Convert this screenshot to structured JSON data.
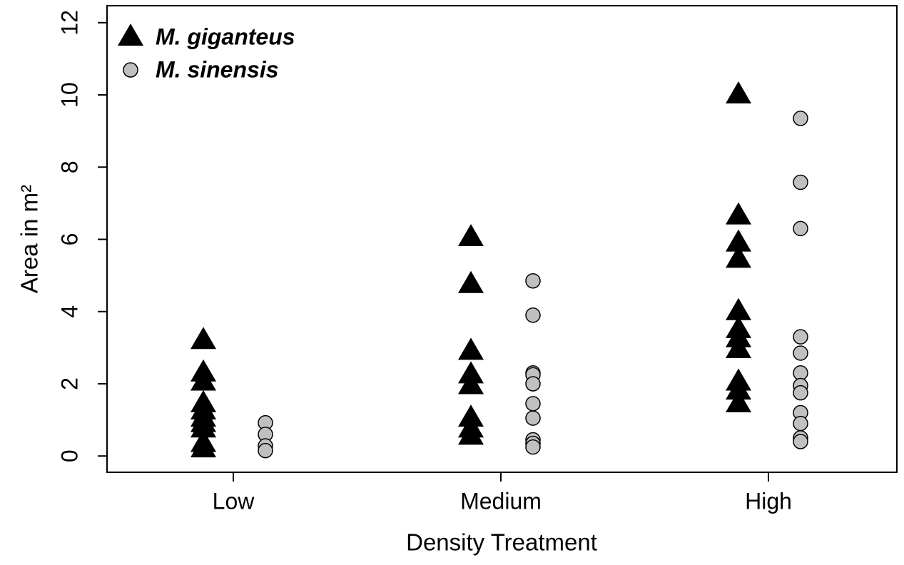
{
  "chart_data": {
    "type": "strip",
    "x_label": "Density Treatment",
    "y_label": "Area in m²",
    "categories": [
      "Low",
      "Medium",
      "High"
    ],
    "series": [
      {
        "name": "M. giganteus",
        "color": "#000000",
        "marker": "triangle",
        "values": [
          [
            3.2,
            2.3,
            2.05,
            1.45,
            1.25,
            1.05,
            0.9,
            0.75,
            0.35,
            0.2
          ],
          [
            6.05,
            4.75,
            2.9,
            2.25,
            1.95,
            1.05,
            0.75,
            0.55
          ],
          [
            10.0,
            6.65,
            5.9,
            5.45,
            4.0,
            3.5,
            3.25,
            2.95,
            2.05,
            1.8,
            1.45
          ]
        ]
      },
      {
        "name": "M. sinensis",
        "color": "#c0c0c0",
        "marker": "circle",
        "values": [
          [
            0.92,
            0.6,
            0.28,
            0.15
          ],
          [
            4.85,
            3.9,
            2.3,
            2.25,
            2.0,
            1.45,
            1.05,
            0.45,
            0.35,
            0.25
          ],
          [
            9.35,
            7.58,
            6.3,
            3.3,
            2.85,
            2.3,
            1.95,
            1.75,
            1.2,
            0.9,
            0.5,
            0.4
          ]
        ]
      }
    ],
    "ylim": [
      -0.45,
      12.47
    ],
    "yticks": [
      0,
      2,
      4,
      6,
      8,
      10,
      12
    ],
    "legend": "top-left",
    "grid": false
  }
}
